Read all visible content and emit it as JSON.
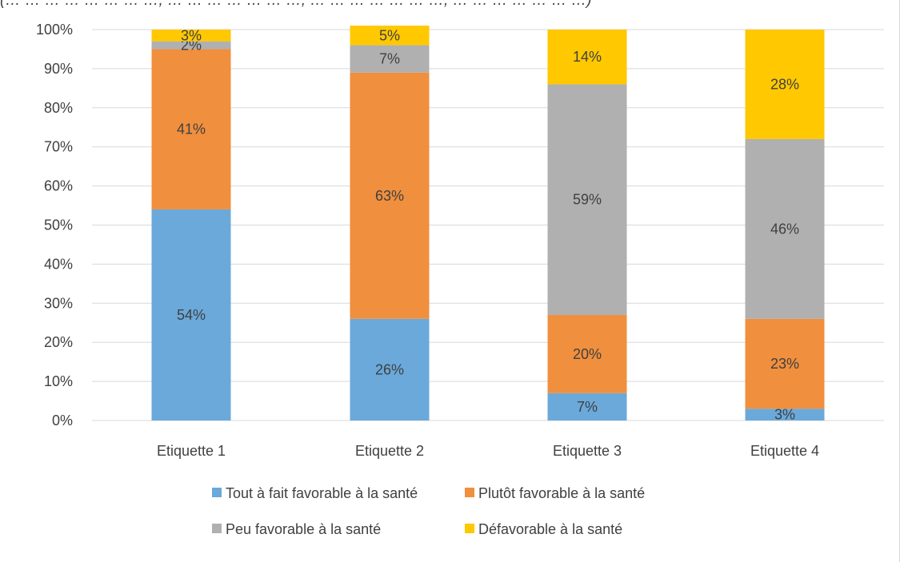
{
  "chart_data": {
    "type": "bar",
    "stacked": true,
    "normalized": true,
    "categories": [
      "Etiquette 1",
      "Etiquette 2",
      "Etiquette 3",
      "Etiquette 4"
    ],
    "series": [
      {
        "name": "Tout à fait favorable à la santé",
        "color": "#6AA9DA",
        "values": [
          54,
          26,
          7,
          3
        ],
        "labels": [
          "54%",
          "26%",
          "7%",
          "3%"
        ]
      },
      {
        "name": "Plutôt favorable à la santé",
        "color": "#F08F3E",
        "values": [
          41,
          63,
          20,
          23
        ],
        "labels": [
          "41%",
          "63%",
          "20%",
          "23%"
        ]
      },
      {
        "name": "Peu favorable à la santé",
        "color": "#B0B0B0",
        "values": [
          2,
          7,
          59,
          46
        ],
        "labels": [
          "2%",
          "7%",
          "59%",
          "46%"
        ]
      },
      {
        "name": "Défavorable à la santé",
        "color": "#FFC800",
        "values": [
          3,
          5,
          14,
          28
        ],
        "labels": [
          "3%",
          "5%",
          "14%",
          "28%"
        ]
      }
    ],
    "y_ticks": [
      "0%",
      "10%",
      "20%",
      "30%",
      "40%",
      "50%",
      "60%",
      "70%",
      "80%",
      "90%",
      "100%"
    ],
    "ylim": [
      0,
      100
    ],
    "grid": true,
    "legend_position": "bottom",
    "partial_caption": "(… … … … … … … …, … … … … … … …, … … … … … … …, … … … … … … …)"
  }
}
